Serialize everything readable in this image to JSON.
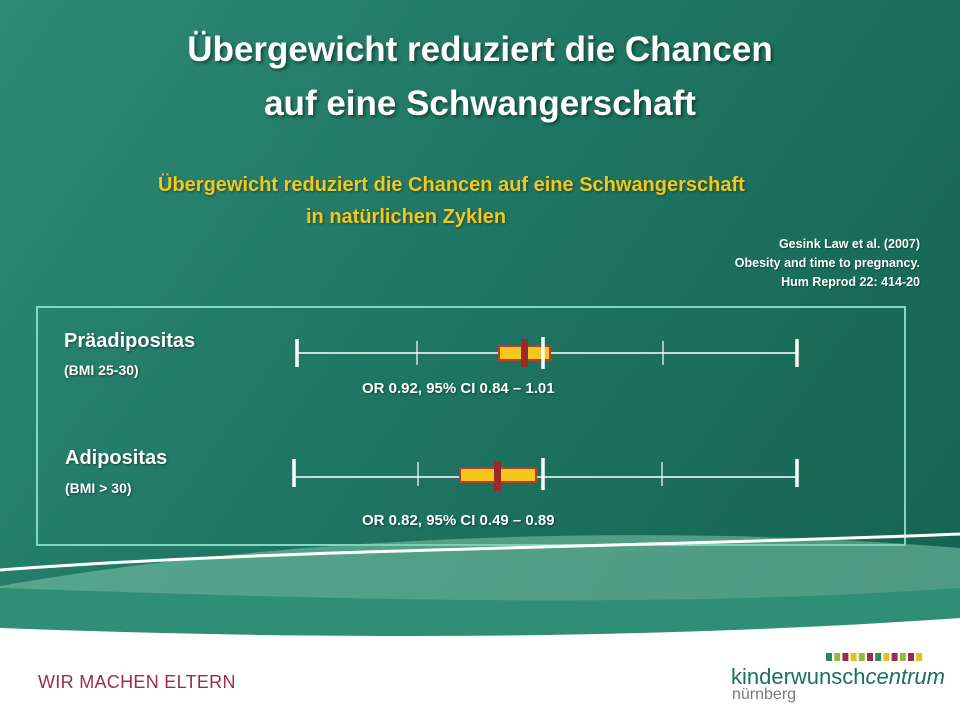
{
  "slide": {
    "title_line1": "Übergewicht reduziert die Chancen",
    "title_line2": "auf eine Schwangerschaft",
    "subtitle_line1": "Übergewicht reduziert die Chancen auf eine Schwangerschaft",
    "subtitle_line2": "in natürlichen Zyklen",
    "reference": {
      "line1": "Gesink Law et al. (2007)",
      "line2": "Obesity and time to pregnancy.",
      "line3": "Hum Reprod 22: 414-20"
    },
    "rows": [
      {
        "label": "Präadipositas",
        "sublabel": "(BMI 25-30)",
        "or_text": "OR 0.92,  95% CI 0.84 – 1.01"
      },
      {
        "label": "Adipositas",
        "sublabel": "(BMI > 30)",
        "or_text": "OR 0.82,  95% CI 0.49 – 0.89"
      }
    ],
    "footer": {
      "slogan": "WIR MACHEN ELTERN",
      "logo_word1": "kinderwunsch",
      "logo_word2": "centrum",
      "logo_city": "nürnberg"
    }
  },
  "colors": {
    "background": "#1f7563",
    "subtitle": "#f3c71b",
    "panel_border": "#7fd9c1",
    "ci_fill": "#f3c71b",
    "ci_border": "#c0392b",
    "point_estimate": "#9c2a2a",
    "slogan": "#9a2b52",
    "logo_squares": [
      "#2e8b57",
      "#8fbc3f",
      "#9a2b52",
      "#e3c21a",
      "#8fbc3f",
      "#9a2b52",
      "#2e8b57",
      "#e3c21a",
      "#9a2b52",
      "#8fbc3f",
      "#9a2b52",
      "#e3c21a"
    ]
  }
}
